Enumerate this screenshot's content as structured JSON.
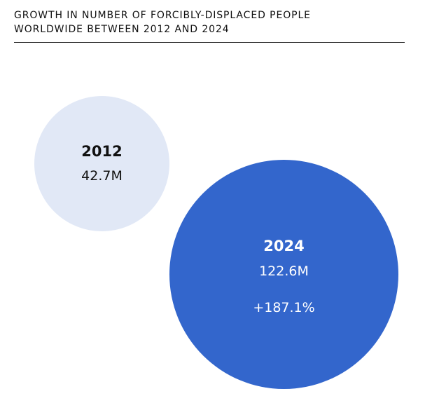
{
  "chart_data": {
    "type": "bubble",
    "title_lines": [
      "GROWTH IN NUMBER OF FORCIBLY-DISPLACED PEOPLE",
      "WORLDWIDE BETWEEN 2012 AND 2024"
    ],
    "points": [
      {
        "year": "2012",
        "value": 42.7,
        "value_label": "42.7M",
        "color": "#E1E8F6"
      },
      {
        "year": "2024",
        "value": 122.6,
        "value_label": "122.6M",
        "change_label": "+187.1%",
        "color": "#3366CC"
      }
    ]
  }
}
